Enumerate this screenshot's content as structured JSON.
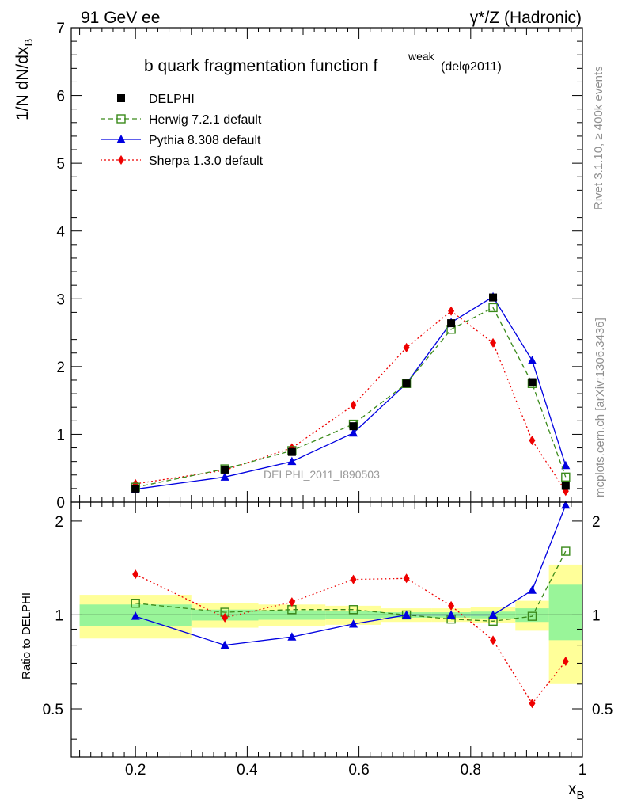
{
  "header": {
    "left": "91 GeV ee",
    "right": "γ*/Z (Hadronic)"
  },
  "side_labels": {
    "rivet": "Rivet 3.1.10, ≥ 400k events",
    "mcplots": "mcplots.cern.ch [arXiv:1306.3436]"
  },
  "colors": {
    "data": "#000000",
    "herwig": "#3a8a1a",
    "pythia": "#0000e0",
    "sherpa": "#ee0000",
    "band_inner": "#99f599",
    "band_outer": "#ffff99"
  },
  "chart_data": [
    {
      "type": "line",
      "title": "b quark fragmentation function f",
      "title_sup": "weak",
      "title_note": "(delφ2011)",
      "watermark": "DELPHI_2011_I890503",
      "xlabel": "x",
      "xlabel_sub": "B",
      "ylabel": "1/N dN/dx",
      "ylabel_sub": "B",
      "xlim": [
        0.085,
        1.0
      ],
      "ylim": [
        0,
        7
      ],
      "yticks": [
        "0",
        "1",
        "2",
        "3",
        "4",
        "5",
        "6",
        "7"
      ],
      "legend_position": "top-left",
      "x": [
        0.2,
        0.36,
        0.48,
        0.59,
        0.685,
        0.765,
        0.84,
        0.91,
        0.97
      ],
      "series": [
        {
          "name": "DELPHI",
          "key": "data",
          "values": [
            0.2,
            0.48,
            0.74,
            1.12,
            1.75,
            2.64,
            3.02,
            1.77,
            0.24
          ]
        },
        {
          "name": "Herwig 7.2.1 default",
          "key": "herwig",
          "values": [
            0.22,
            0.49,
            0.76,
            1.15,
            1.75,
            2.55,
            2.87,
            1.75,
            0.37
          ]
        },
        {
          "name": "Pythia 8.308 default",
          "key": "pythia",
          "values": [
            0.19,
            0.37,
            0.6,
            1.02,
            1.75,
            2.65,
            3.03,
            2.09,
            0.54
          ]
        },
        {
          "name": "Sherpa 1.3.0 default",
          "key": "sherpa",
          "values": [
            0.27,
            0.47,
            0.8,
            1.43,
            2.28,
            2.82,
            2.35,
            0.91,
            0.16
          ]
        }
      ]
    },
    {
      "type": "line",
      "title": "",
      "ylabel": "Ratio to DELPHI",
      "xlabel": "x",
      "xlabel_sub": "B",
      "xlim": [
        0.085,
        1.0
      ],
      "ylim": [
        0.35,
        2.3
      ],
      "yscale": "log",
      "xticks": [
        "0.2",
        "0.4",
        "0.6",
        "0.8",
        "1"
      ],
      "yticks": [
        "0.5",
        "1",
        "2"
      ],
      "x": [
        0.2,
        0.36,
        0.48,
        0.59,
        0.685,
        0.765,
        0.84,
        0.91,
        0.97
      ],
      "bands": [
        {
          "xmin": 0.1,
          "xmax": 0.3,
          "inner": [
            0.92,
            1.08
          ],
          "outer": [
            0.84,
            1.16
          ]
        },
        {
          "xmin": 0.3,
          "xmax": 0.42,
          "inner": [
            0.96,
            1.04
          ],
          "outer": [
            0.91,
            1.09
          ]
        },
        {
          "xmin": 0.42,
          "xmax": 0.54,
          "inner": [
            0.965,
            1.035
          ],
          "outer": [
            0.92,
            1.08
          ]
        },
        {
          "xmin": 0.54,
          "xmax": 0.64,
          "inner": [
            0.97,
            1.03
          ],
          "outer": [
            0.93,
            1.07
          ]
        },
        {
          "xmin": 0.64,
          "xmax": 0.73,
          "inner": [
            0.98,
            1.02
          ],
          "outer": [
            0.95,
            1.05
          ]
        },
        {
          "xmin": 0.73,
          "xmax": 0.8,
          "inner": [
            0.98,
            1.02
          ],
          "outer": [
            0.95,
            1.05
          ]
        },
        {
          "xmin": 0.8,
          "xmax": 0.88,
          "inner": [
            0.975,
            1.025
          ],
          "outer": [
            0.94,
            1.06
          ]
        },
        {
          "xmin": 0.88,
          "xmax": 0.94,
          "inner": [
            0.95,
            1.05
          ],
          "outer": [
            0.89,
            1.11
          ]
        },
        {
          "xmin": 0.94,
          "xmax": 1.0,
          "inner": [
            0.83,
            1.25
          ],
          "outer": [
            0.6,
            1.45
          ]
        }
      ],
      "series": [
        {
          "name": "Herwig 7.2.1 default",
          "key": "herwig",
          "values": [
            1.09,
            1.02,
            1.04,
            1.04,
            1.0,
            0.97,
            0.955,
            0.99,
            1.6
          ]
        },
        {
          "name": "Pythia 8.308 default",
          "key": "pythia",
          "values": [
            0.99,
            0.8,
            0.85,
            0.935,
            1.0,
            1.0,
            1.0,
            1.2,
            2.25
          ]
        },
        {
          "name": "Sherpa 1.3.0 default",
          "key": "sherpa",
          "values": [
            1.35,
            0.98,
            1.1,
            1.3,
            1.31,
            1.07,
            0.83,
            0.52,
            0.71
          ]
        }
      ]
    }
  ]
}
